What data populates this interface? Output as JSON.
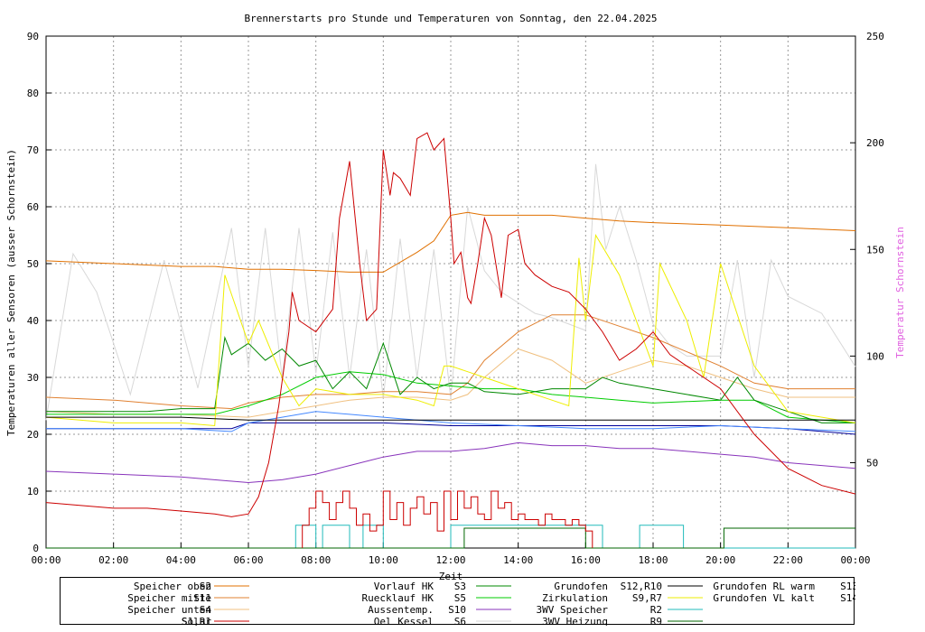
{
  "chart_data": {
    "type": "line",
    "title": "Brennerstarts pro Stunde und Temperaturen von Sonntag, den 22.04.2025",
    "xlabel": "Zeit",
    "ylabel": "Temperaturen aller Sensoren (ausser Schornstein)",
    "y2label": "Temperatur Schornstein",
    "y2label_color": "#e060e0",
    "xlim": [
      0,
      24
    ],
    "ylim": [
      0,
      90
    ],
    "y2lim": [
      10,
      250
    ],
    "grid": true,
    "x_ticks": [
      "00:00",
      "02:00",
      "04:00",
      "06:00",
      "08:00",
      "10:00",
      "12:00",
      "14:00",
      "16:00",
      "18:00",
      "20:00",
      "22:00",
      "00:00"
    ],
    "y_ticks": [
      0,
      10,
      20,
      30,
      40,
      50,
      60,
      70,
      80,
      90
    ],
    "y2_ticks": [
      50,
      100,
      150,
      200,
      250
    ],
    "series": [
      {
        "name": "Speicher oben",
        "code": "S2",
        "color": "#e07000",
        "axis": "y",
        "x": [
          0,
          2,
          4,
          5,
          6,
          7,
          8,
          9,
          10,
          11,
          11.5,
          12,
          12.5,
          13,
          15,
          16,
          17,
          18,
          20,
          22,
          24
        ],
        "y": [
          50.5,
          50,
          49.5,
          49.5,
          49,
          49,
          48.8,
          48.5,
          48.5,
          52,
          54,
          58.5,
          59,
          58.5,
          58.5,
          58,
          57.5,
          57.2,
          56.8,
          56.3,
          55.8
        ]
      },
      {
        "name": "Speicher mitte",
        "code": "S11",
        "color": "#e08030",
        "axis": "y",
        "x": [
          0,
          2,
          4,
          5.5,
          6,
          7,
          8,
          9,
          10,
          11,
          12,
          12.5,
          13,
          14,
          15,
          16,
          17,
          18,
          20,
          21,
          22,
          24
        ],
        "y": [
          26.5,
          26,
          25,
          24.5,
          25.5,
          26.5,
          27,
          27,
          27.5,
          27.5,
          27,
          29,
          33,
          38,
          41,
          41,
          39,
          37,
          32,
          29,
          28,
          28
        ]
      },
      {
        "name": "Speicher unten",
        "code": "S4",
        "color": "#f0c080",
        "axis": "y",
        "x": [
          0,
          2,
          4,
          6,
          7,
          8,
          9,
          10,
          11,
          12,
          12.5,
          13,
          14,
          15,
          16,
          17,
          18,
          19,
          20,
          21,
          22,
          24
        ],
        "y": [
          24,
          23.5,
          23.5,
          23,
          24,
          25,
          26,
          26.5,
          26.5,
          26,
          27,
          30,
          35,
          33,
          29,
          31,
          33,
          32,
          30,
          28,
          26.5,
          26.5
        ]
      },
      {
        "name": "Solar",
        "code": "S1,R1",
        "color": "#cc0000",
        "axis": "y",
        "x": [
          0,
          1,
          2,
          3,
          4,
          5,
          5.5,
          6,
          6.3,
          6.6,
          6.9,
          7.2,
          7.3,
          7.5,
          8,
          8.5,
          8.7,
          9,
          9.3,
          9.5,
          9.8,
          10,
          10.2,
          10.3,
          10.5,
          10.8,
          11,
          11.3,
          11.5,
          11.8,
          12,
          12.1,
          12.3,
          12.5,
          12.6,
          12.8,
          13,
          13.2,
          13.5,
          13.7,
          14,
          14.2,
          14.5,
          15,
          15.5,
          16,
          16.5,
          17,
          17.5,
          18,
          18.5,
          19,
          20,
          21,
          22,
          23,
          24
        ],
        "y": [
          8,
          7.5,
          7,
          7,
          6.5,
          6,
          5.5,
          6,
          9,
          15,
          25,
          38,
          45,
          40,
          38,
          42,
          58,
          68,
          50,
          40,
          42,
          70,
          62,
          66,
          65,
          62,
          72,
          73,
          70,
          72,
          58,
          50,
          52,
          44,
          43,
          50,
          58,
          55,
          44,
          55,
          56,
          50,
          48,
          46,
          45,
          42,
          38,
          33,
          35,
          38,
          34,
          32,
          28,
          20,
          14,
          11,
          9.5
        ]
      },
      {
        "name": "Vorlauf HK",
        "code": "S3",
        "color": "#008800",
        "axis": "y",
        "x": [
          0,
          1,
          2,
          3,
          4,
          5,
          5.3,
          5.5,
          6,
          6.5,
          7,
          7.5,
          8,
          8.5,
          9,
          9.5,
          10,
          10.5,
          11,
          11.5,
          12,
          12.5,
          13,
          14,
          15,
          16,
          16.5,
          17,
          18,
          19,
          20,
          20.5,
          21,
          22,
          23,
          24
        ],
        "y": [
          24,
          24,
          24,
          24,
          24.5,
          24.5,
          37,
          34,
          36,
          33,
          35,
          32,
          33,
          28,
          31,
          28,
          36,
          27,
          30,
          28,
          29,
          29,
          27.5,
          27,
          28,
          28,
          30,
          29,
          28,
          27,
          26,
          30,
          26,
          24,
          22,
          22
        ]
      },
      {
        "name": "Ruecklauf HK",
        "code": "S5",
        "color": "#00cc00",
        "axis": "y",
        "x": [
          0,
          2,
          4,
          5,
          6,
          7,
          8,
          9,
          10,
          11,
          12,
          13,
          14,
          15,
          16,
          17,
          18,
          20,
          21,
          22,
          24
        ],
        "y": [
          23.5,
          23.5,
          23.5,
          23.5,
          25,
          27,
          30,
          31,
          30.5,
          29,
          28.5,
          28,
          28,
          27,
          26.5,
          26,
          25.5,
          26,
          26,
          23,
          22
        ]
      },
      {
        "name": "Aussentemp.",
        "code": "S10",
        "color": "#8833bb",
        "axis": "y",
        "x": [
          0,
          2,
          4,
          6,
          7,
          8,
          9,
          10,
          11,
          12,
          13,
          14,
          15,
          16,
          17,
          18,
          19,
          20,
          21,
          22,
          24
        ],
        "y": [
          13.5,
          13,
          12.5,
          11.5,
          12,
          13,
          14.5,
          16,
          17,
          17,
          17.5,
          18.5,
          18,
          18,
          17.5,
          17.5,
          17,
          16.5,
          16,
          15,
          14
        ]
      },
      {
        "name": "Oel Kessel",
        "code": "S6",
        "color": "#d8d8d8",
        "axis": "y2",
        "x": [
          0,
          0.8,
          1.5,
          2.5,
          3.5,
          4.5,
          5.5,
          6,
          6.5,
          7,
          7.5,
          8,
          8.5,
          9,
          9.5,
          10,
          10.5,
          11,
          11.5,
          12,
          12.5,
          13,
          13.5,
          14,
          14.5,
          15,
          15.5,
          16,
          16.3,
          16.6,
          17,
          17.5,
          18,
          18.5,
          19,
          20,
          20.5,
          21,
          21.5,
          22,
          23,
          24
        ],
        "y": [
          70,
          148,
          130,
          82,
          145,
          85,
          160,
          95,
          160,
          90,
          160,
          92,
          158,
          90,
          150,
          80,
          155,
          90,
          150,
          80,
          170,
          140,
          130,
          125,
          120,
          118,
          115,
          112,
          190,
          150,
          170,
          145,
          115,
          105,
          100,
          100,
          145,
          90,
          145,
          128,
          120,
          95
        ]
      },
      {
        "name": "Grundofen",
        "code": "S12,R10",
        "color": "#000000",
        "axis": "y",
        "x": [
          0,
          4,
          6,
          8,
          10,
          12,
          14,
          16,
          18,
          20,
          22,
          24
        ],
        "y": [
          23,
          23,
          22.5,
          22.5,
          22.5,
          22.5,
          22.5,
          22.5,
          22.5,
          22.5,
          22.5,
          22.5
        ]
      },
      {
        "name": "Zirkulation",
        "code": "S9,R7",
        "color": "#eeee00",
        "axis": "y",
        "x": [
          0,
          2,
          4,
          5,
          5.3,
          6,
          6.3,
          7,
          7.5,
          8,
          9,
          10,
          11,
          11.5,
          11.8,
          12,
          12.5,
          13,
          14,
          15,
          15.5,
          15.8,
          16,
          16.3,
          17,
          18,
          18.2,
          19,
          19.5,
          20,
          21,
          22,
          24
        ],
        "y": [
          23,
          22,
          22,
          21.5,
          48,
          36,
          40,
          30,
          25,
          28,
          27,
          27,
          26,
          25,
          32,
          32,
          31,
          30,
          28,
          26,
          25,
          51,
          40,
          55,
          48,
          32,
          50,
          40,
          30,
          50,
          32,
          24,
          22
        ]
      },
      {
        "name": "3WV Speicher",
        "code": "R2",
        "color": "#22bbbb",
        "axis": "y",
        "x": [
          0,
          7.4,
          7.4,
          8.0,
          8.0,
          8.2,
          8.2,
          9.0,
          9.0,
          9.4,
          9.4,
          10.0,
          10.0,
          12.0,
          12.0,
          16.5,
          16.5,
          17.6,
          17.6,
          18.9,
          18.9,
          24
        ],
        "y": [
          0,
          0,
          4,
          4,
          0,
          0,
          4,
          4,
          0,
          0,
          4,
          4,
          0,
          0,
          4,
          4,
          0,
          0,
          4,
          4,
          0,
          0
        ]
      },
      {
        "name": "3WV Heizung",
        "code": "R9",
        "color": "#006600",
        "axis": "y",
        "x": [
          0,
          12.4,
          12.4,
          16.0,
          16.0,
          20.1,
          20.1,
          24
        ],
        "y": [
          0,
          0,
          3.5,
          3.5,
          0,
          0,
          3.5,
          3.5
        ]
      },
      {
        "name": "Grundofen RL warm",
        "code": "S13",
        "color": "#000099",
        "axis": "y",
        "x": [
          0,
          4,
          5.5,
          6,
          8,
          10,
          12,
          14,
          16,
          18,
          20,
          22,
          24
        ],
        "y": [
          21,
          21,
          21,
          22,
          22,
          22,
          21.5,
          21.5,
          21.5,
          21.5,
          21.5,
          21,
          20
        ]
      },
      {
        "name": "Grundofen VL kalt",
        "code": "S14",
        "color": "#4488ff",
        "axis": "y",
        "x": [
          0,
          4,
          5.5,
          6,
          7,
          8,
          9,
          10,
          11,
          12,
          14,
          16,
          18,
          20,
          22,
          24
        ],
        "y": [
          21,
          21,
          20.5,
          22,
          23,
          24,
          23.5,
          23,
          22.5,
          22,
          21.5,
          21,
          21,
          21.5,
          21,
          20.5
        ]
      }
    ],
    "burner_starts": {
      "name": "Brennerstarts pro Stunde",
      "color": "#cc0000",
      "x": [
        7.6,
        7.8,
        8,
        8.2,
        8.4,
        8.6,
        8.8,
        9,
        9.2,
        9.4,
        9.6,
        9.8,
        10,
        10.2,
        10.4,
        10.6,
        10.8,
        11,
        11.2,
        11.4,
        11.6,
        11.8,
        12,
        12.2,
        12.4,
        12.6,
        12.8,
        13,
        13.2,
        13.4,
        13.6,
        13.8,
        14,
        14.2,
        14.4,
        14.6,
        14.8,
        15,
        15.2,
        15.4,
        15.6,
        15.8,
        16
      ],
      "y": [
        4,
        7,
        10,
        8,
        5,
        8,
        10,
        7,
        4,
        6,
        3,
        4,
        10,
        5,
        8,
        4,
        7,
        9,
        6,
        8,
        3,
        10,
        5,
        10,
        7,
        9,
        6,
        5,
        10,
        7,
        8,
        5,
        6,
        5,
        5,
        4,
        6,
        5,
        5,
        4,
        5,
        4,
        3
      ]
    },
    "legend": {
      "placement": "bottom",
      "entries": [
        {
          "label": "Speicher oben",
          "code": "S2",
          "color": "#e07000"
        },
        {
          "label": "Speicher mitte",
          "code": "S11",
          "color": "#e08030"
        },
        {
          "label": "Speicher unten",
          "code": "S4",
          "color": "#f0c080"
        },
        {
          "label": "Solar",
          "code": "S1,R1",
          "color": "#cc0000"
        },
        {
          "label": "Vorlauf HK",
          "code": "S3",
          "color": "#008800"
        },
        {
          "label": "Ruecklauf HK",
          "code": "S5",
          "color": "#00cc00"
        },
        {
          "label": "Aussentemp.",
          "code": "S10",
          "color": "#8833bb"
        },
        {
          "label": "Oel Kessel",
          "code": "S6",
          "color": "#d8d8d8"
        },
        {
          "label": "Grundofen",
          "code": "S12,R10",
          "color": "#000000"
        },
        {
          "label": "Zirkulation",
          "code": "S9,R7",
          "color": "#eeee00"
        },
        {
          "label": "3WV Speicher",
          "code": "R2",
          "color": "#22bbbb"
        },
        {
          "label": "3WV Heizung",
          "code": "R9",
          "color": "#006600"
        },
        {
          "label": "Grundofen RL warm",
          "code": "S13",
          "color": "#000099"
        },
        {
          "label": "Grundofen VL kalt",
          "code": "S14",
          "color": "#4488ff"
        }
      ]
    }
  }
}
